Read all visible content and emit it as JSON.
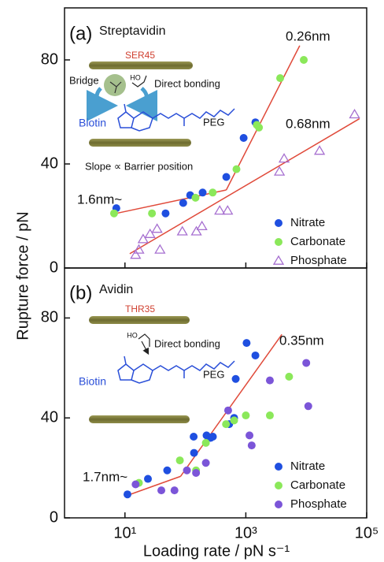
{
  "chart_data": [
    {
      "type": "scatter",
      "title": "(a)",
      "subtitle": "Streptavidin",
      "ylabel": "Rupture force / pN",
      "xscale": "log",
      "xlim": [
        1,
        100000
      ],
      "ylim": [
        0,
        100
      ],
      "yticks": [
        0,
        40,
        80
      ],
      "legend": "lower right",
      "series": [
        {
          "name": "Nitrate",
          "color": "#1f4fe0",
          "marker": "circle",
          "x": [
            7.2,
            47,
            92,
            120,
            193,
            475,
            920,
            1440
          ],
          "values": [
            23,
            21,
            25,
            28,
            29,
            35,
            50,
            56
          ]
        },
        {
          "name": "Carbonate",
          "color": "#8be85a",
          "marker": "circle",
          "x": [
            6.6,
            28,
            147,
            283,
            700,
            1520,
            1650,
            3700,
            9100
          ],
          "values": [
            21,
            21,
            27,
            29,
            38,
            55,
            54,
            73,
            80
          ]
        },
        {
          "name": "Phosphate",
          "color": "#a66fd0",
          "marker": "triangle-open",
          "x": [
            15,
            17,
            20,
            26,
            34,
            38,
            89,
            152,
            188,
            370,
            500,
            3600,
            4300,
            16600,
            63000
          ],
          "values": [
            5,
            7,
            11,
            13,
            15,
            7,
            14,
            14,
            16,
            22,
            22,
            37,
            42,
            45,
            59
          ]
        }
      ],
      "fits": [
        {
          "label": "1.6nm~",
          "color": "#e04a3a",
          "x": [
            7.2,
            475
          ],
          "y": [
            21,
            30
          ]
        },
        {
          "label": "0.26nm",
          "color": "#e04a3a",
          "x": [
            475,
            7800
          ],
          "y": [
            30,
            85.5
          ]
        },
        {
          "label": "0.68nm",
          "color": "#e04a3a",
          "x": [
            12,
            76000
          ],
          "y": [
            5.5,
            57.4
          ]
        }
      ],
      "annotations": {
        "residue": "SER45",
        "hydroxyl": "HO",
        "bridge": "Bridge",
        "bonding": "Direct bonding",
        "biotin": "Biotin",
        "peg": "PEG",
        "slope": "Slope ∝ Barrier position"
      }
    },
    {
      "type": "scatter",
      "title": "(b)",
      "subtitle": "Avidin",
      "xlabel": "Loading rate / pN s⁻¹",
      "xscale": "log",
      "xlim": [
        1,
        100000
      ],
      "ylim": [
        0,
        100
      ],
      "yticks": [
        0,
        40,
        80
      ],
      "legend": "lower right",
      "xticks": [
        {
          "value": 10,
          "label": "10¹"
        },
        {
          "value": 1000,
          "label": "10³"
        },
        {
          "value": 100000,
          "label": "10⁵"
        }
      ],
      "series": [
        {
          "name": "Nitrate",
          "color": "#1f4fe0",
          "marker": "circle",
          "x": [
            11,
            24,
            50,
            139,
            137,
            224,
            260,
            285,
            530,
            640,
            680,
            1030,
            1440
          ],
          "values": [
            9.4,
            15.6,
            19,
            26,
            32.5,
            33,
            32,
            32.5,
            37.5,
            40,
            55.6,
            70,
            65
          ]
        },
        {
          "name": "Carbonate",
          "color": "#8be85a",
          "marker": "circle",
          "x": [
            17,
            81,
            150,
            218,
            470,
            640,
            1000,
            2500,
            5200
          ],
          "values": [
            14,
            23,
            19,
            30,
            37.5,
            39,
            41,
            41,
            56.5
          ]
        },
        {
          "name": "Phosphate",
          "color": "#7b55d8",
          "marker": "circle",
          "x": [
            15,
            40,
            66,
            106,
            150,
            218,
            510,
            1150,
            1250,
            2500,
            10800,
            10000
          ],
          "values": [
            13.4,
            11,
            11,
            19,
            18,
            22,
            43,
            33,
            29,
            55,
            44.7,
            62
          ]
        }
      ],
      "fits": [
        {
          "label": "1.7nm~",
          "color": "#e04a3a",
          "x": [
            10.3,
            83
          ],
          "y": [
            8.75,
            16.6
          ]
        },
        {
          "label": "0.35nm",
          "color": "#e04a3a",
          "x": [
            83,
            3950
          ],
          "y": [
            16.6,
            73.4
          ]
        }
      ],
      "annotations": {
        "residue": "THR35",
        "hydroxyl": "HO",
        "bonding": "Direct bonding",
        "biotin": "Biotin",
        "peg": "PEG"
      }
    }
  ]
}
